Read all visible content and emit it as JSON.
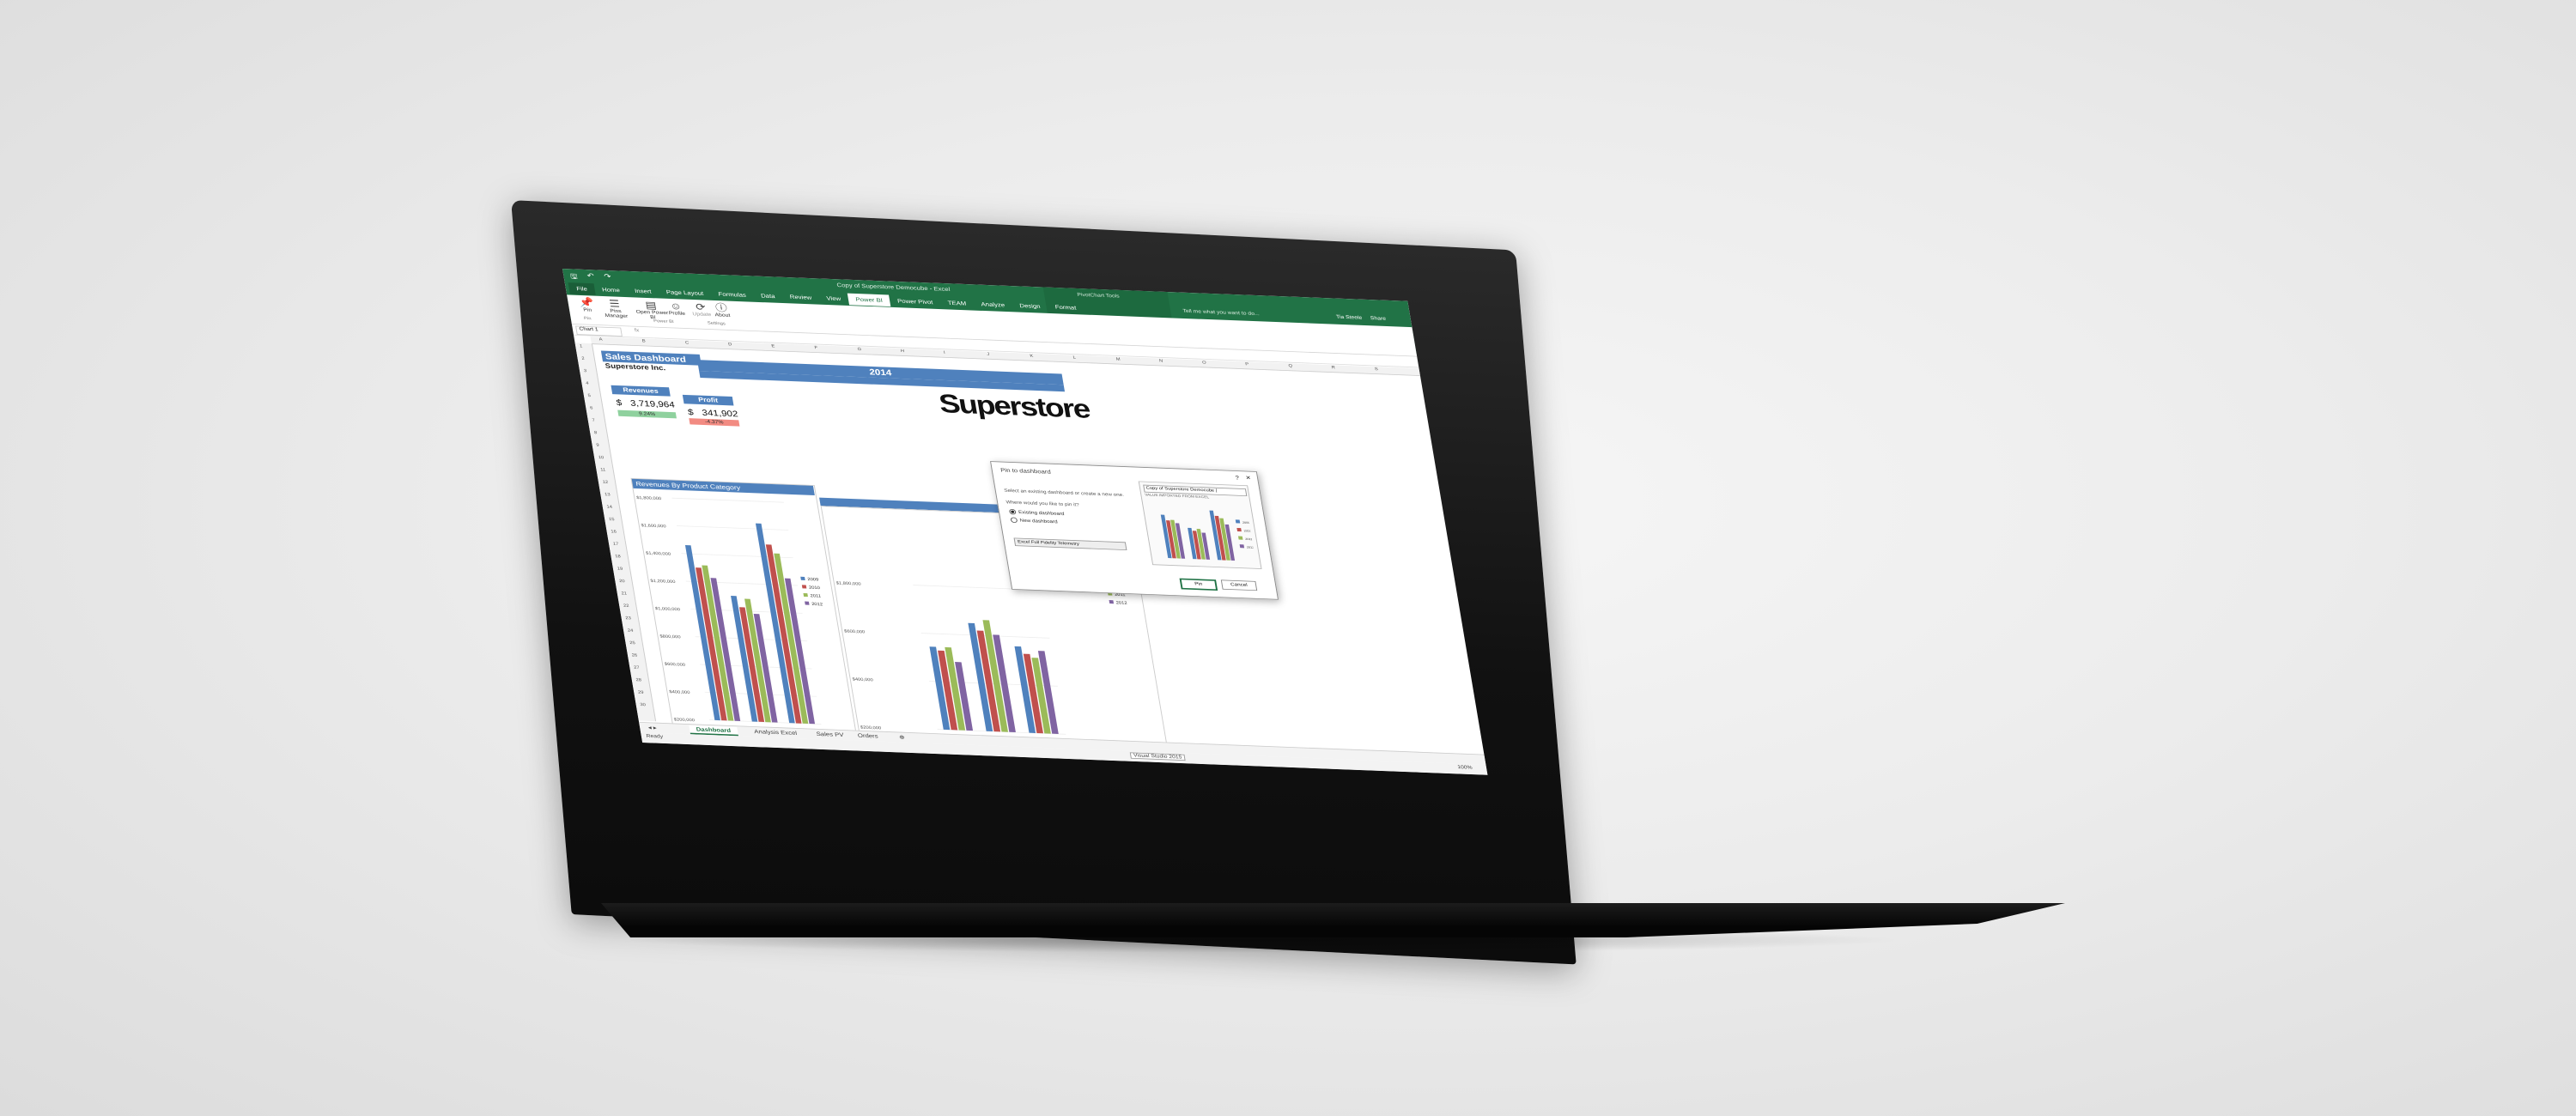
{
  "app": {
    "title": "Copy of Superstore Democube - Excel",
    "context_title": "PivotChart Tools",
    "tell_me": "Tell me what you want to do...",
    "user": "Tia Steele",
    "share": "Share"
  },
  "tabs": [
    "File",
    "Home",
    "Insert",
    "Page Layout",
    "Formulas",
    "Data",
    "Review",
    "View",
    "Power BI",
    "Power Pivot",
    "TEAM",
    "Analyze",
    "Design",
    "Format"
  ],
  "ribbon": {
    "buttons": [
      {
        "label": "Pin",
        "icon": "pin-icon"
      },
      {
        "label": "Pins Manager",
        "icon": "pins-manager-icon"
      },
      {
        "label": "Open Power BI",
        "icon": "open-powerbi-icon"
      },
      {
        "label": "Profile",
        "icon": "profile-icon"
      },
      {
        "label": "Update",
        "icon": "update-icon"
      },
      {
        "label": "About",
        "icon": "about-icon"
      }
    ],
    "groups": [
      "Pin",
      "Power BI",
      "Settings"
    ]
  },
  "formula_bar": {
    "name_box": "Chart 1",
    "fx": "fx"
  },
  "columns": [
    "A",
    "B",
    "C",
    "D",
    "E",
    "F",
    "G",
    "H",
    "I",
    "J",
    "K",
    "L",
    "M",
    "N",
    "O",
    "P",
    "Q",
    "R",
    "S"
  ],
  "rows": [
    "1",
    "2",
    "3",
    "4",
    "5",
    "6",
    "7",
    "8",
    "9",
    "10",
    "11",
    "12",
    "13",
    "14",
    "15",
    "16",
    "17",
    "18",
    "19",
    "20",
    "21",
    "22",
    "23",
    "24",
    "25",
    "26",
    "27",
    "28",
    "29",
    "30"
  ],
  "dashboard": {
    "title": "Sales Dashboard",
    "company": "Superstore Inc.",
    "year": "2014",
    "logo": "Superstore",
    "revenues": {
      "label": "Revenues",
      "currency": "$",
      "value": "3,719,964",
      "pct": "9.24%",
      "color": "#8fd19e"
    },
    "profit": {
      "label": "Profit",
      "currency": "$",
      "value": "341,902",
      "pct": "-4.37%",
      "color": "#f28b82"
    }
  },
  "chart_data": [
    {
      "type": "bar",
      "title": "Revenues By Product Category",
      "yticks": [
        "$1,800,000",
        "$1,600,000",
        "$1,400,000",
        "$1,200,000",
        "$1,000,000",
        "$800,000",
        "$600,000",
        "$400,000",
        "$200,000"
      ],
      "series": [
        {
          "name": "2009",
          "color": "#4f81bd",
          "values": [
            1420000,
            1020000,
            1620000
          ]
        },
        {
          "name": "2010",
          "color": "#c0504d",
          "values": [
            1240000,
            930000,
            1450000
          ]
        },
        {
          "name": "2011",
          "color": "#9bbb59",
          "values": [
            1260000,
            1000000,
            1380000
          ]
        },
        {
          "name": "2012",
          "color": "#8064a2",
          "values": [
            1160000,
            880000,
            1180000
          ]
        }
      ]
    },
    {
      "type": "bar",
      "title": "",
      "yticks": [
        "$1,800,000",
        "$600,000",
        "$400,000",
        "$200,000"
      ],
      "series": [
        {
          "name": "2009",
          "color": "#4f81bd",
          "values": [
            460000,
            600000,
            480000
          ]
        },
        {
          "name": "2010",
          "color": "#c0504d",
          "values": [
            440000,
            560000,
            440000
          ]
        },
        {
          "name": "2011",
          "color": "#9bbb59",
          "values": [
            460000,
            620000,
            420000
          ]
        },
        {
          "name": "2012",
          "color": "#8064a2",
          "values": [
            380000,
            540000,
            460000
          ]
        }
      ]
    }
  ],
  "dialog": {
    "title": "Pin to dashboard",
    "help": "?",
    "close": "×",
    "instruction": "Select an existing dashboard or create a new one.",
    "question": "Where would you like to pin it?",
    "option_existing": "Existing dashboard",
    "option_new": "New dashboard",
    "selected": "Excel Full Fidelity Telemetry",
    "preview_title": "Copy of Superstore Democube |",
    "preview_sub": "VALUE IMPORTED FROM EXCEL",
    "pin_button": "Pin",
    "cancel_button": "Cancel"
  },
  "sheet_tabs": [
    "Dashboard",
    "Analysis Excel",
    "Sales PV",
    "Orders"
  ],
  "status": {
    "ready": "Ready",
    "tooltip": "Visual Studio 2015",
    "zoom": "100%"
  }
}
